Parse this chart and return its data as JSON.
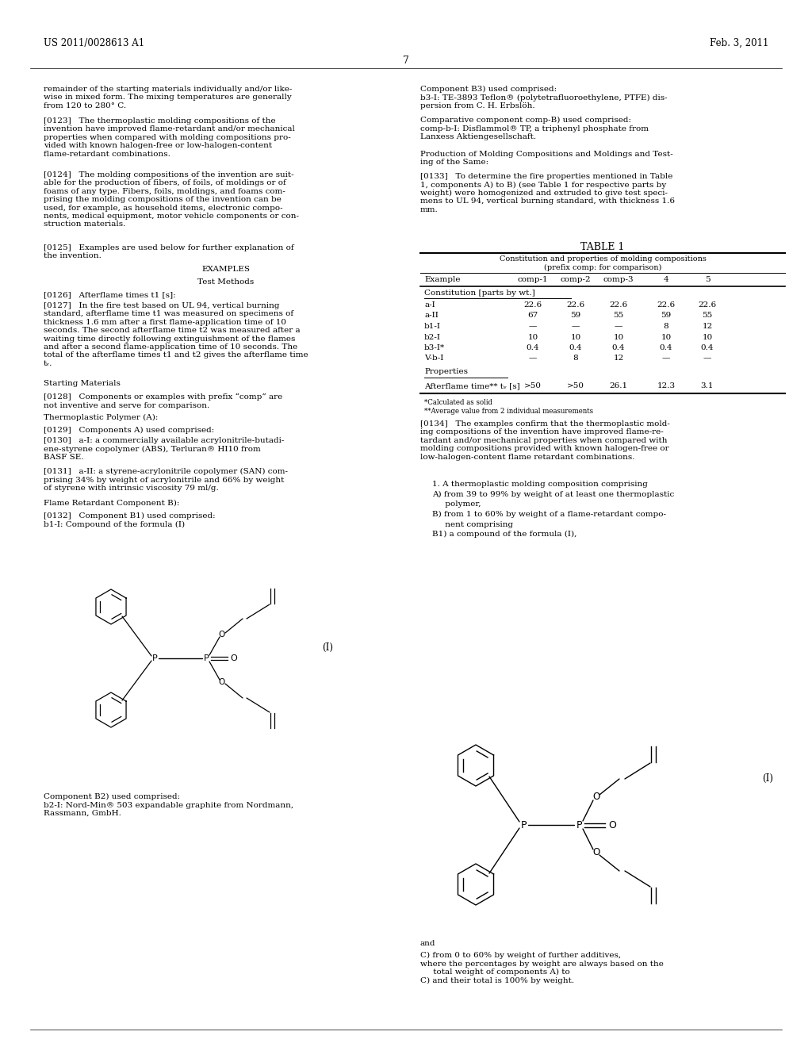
{
  "bg_color": "#ffffff",
  "header_left": "US 2011/0028613 A1",
  "header_right": "Feb. 3, 2011",
  "page_number": "7",
  "table_title": "TABLE 1",
  "table_subtitle_line1": "Constitution and properties of molding compositions",
  "table_subtitle_line2": "(prefix comp: for comparison)",
  "table_columns": [
    "Example",
    "comp-1",
    "comp-2",
    "comp-3",
    "4",
    "5"
  ],
  "table_section1": "Constitution [parts by wt.]",
  "table_rows": [
    [
      "a-I",
      "22.6",
      "22.6",
      "22.6",
      "22.6",
      "22.6"
    ],
    [
      "a-II",
      "67",
      "59",
      "55",
      "59",
      "55"
    ],
    [
      "b1-I",
      "—",
      "—",
      "—",
      "8",
      "12"
    ],
    [
      "b2-I",
      "10",
      "10",
      "10",
      "10",
      "10"
    ],
    [
      "b3-I*",
      "0.4",
      "0.4",
      "0.4",
      "0.4",
      "0.4"
    ],
    [
      "V-b-I",
      "—",
      "8",
      "12",
      "—",
      "—"
    ]
  ],
  "table_section2": "Properties",
  "table_row_prop": [
    "Afterflame time** tᵥ [s]",
    ">50",
    ">50",
    "26.1",
    "12.3",
    "3.1"
  ],
  "table_footnote1": "*Calculated as solid",
  "table_footnote2": "**Average value from 2 individual measurements",
  "para_0134": "[0134]   The examples confirm that the thermoplastic mold-\ning compositions of the invention have improved flame-re-\ntardant and/or mechanical properties when compared with\nmolding compositions provided with known halogen-free or\nlow-halogen-content flame retardant combinations.",
  "formula_label": "(I)",
  "bottom_left_text": "Component B2) used comprised:\nb2-I: Nord-Min® 503 expandable graphite from Nordmann,\nRassmann, GmbH.",
  "bottom_right_text_line1": "and",
  "bottom_right_text_rest": "C) from 0 to 60% by weight of further additives,\nwhere the percentages by weight are always based on the\n     total weight of components A) to\nC) and their total is 100% by weight."
}
